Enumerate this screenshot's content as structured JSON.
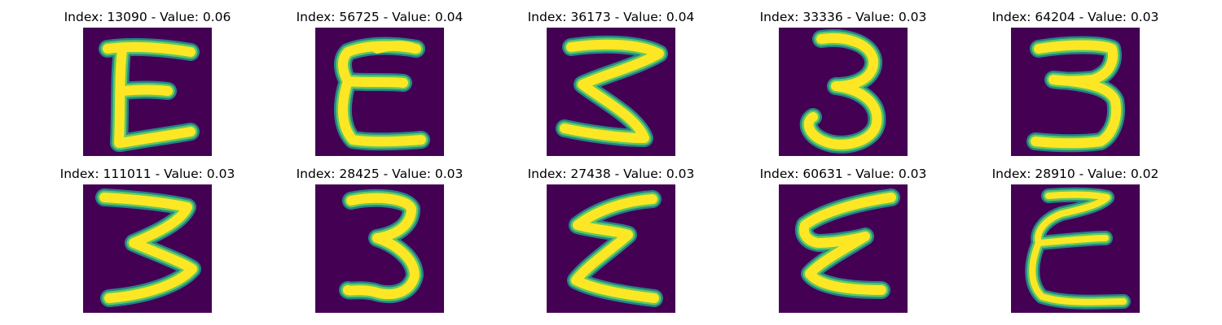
{
  "panels": [
    {
      "index": "13090",
      "value": "0.06",
      "title": "Index: 13090 - Value: 0.06",
      "glyph": "E-shape"
    },
    {
      "index": "56725",
      "value": "0.04",
      "title": "Index: 56725 - Value: 0.04",
      "glyph": "E-shape"
    },
    {
      "index": "36173",
      "value": "0.04",
      "title": "Index: 36173 - Value: 0.04",
      "glyph": "3-shape"
    },
    {
      "index": "33336",
      "value": "0.03",
      "title": "Index: 33336 - Value: 0.03",
      "glyph": "3-shape"
    },
    {
      "index": "64204",
      "value": "0.03",
      "title": "Index: 64204 - Value: 0.03",
      "glyph": "3-shape"
    },
    {
      "index": "111011",
      "value": "0.03",
      "title": "Index: 111011 - Value: 0.03",
      "glyph": "3-shape"
    },
    {
      "index": "28425",
      "value": "0.03",
      "title": "Index: 28425 - Value: 0.03",
      "glyph": "3-shape"
    },
    {
      "index": "27438",
      "value": "0.03",
      "title": "Index: 27438 - Value: 0.03",
      "glyph": "E-shape"
    },
    {
      "index": "60631",
      "value": "0.03",
      "title": "Index: 60631 - Value: 0.03",
      "glyph": "E-shape"
    },
    {
      "index": "28910",
      "value": "0.02",
      "title": "Index: 28910 - Value: 0.02",
      "glyph": "E-shape"
    }
  ],
  "colors": {
    "background": "#440154",
    "stroke_core": "#fde725",
    "stroke_edge": "#21918c"
  }
}
